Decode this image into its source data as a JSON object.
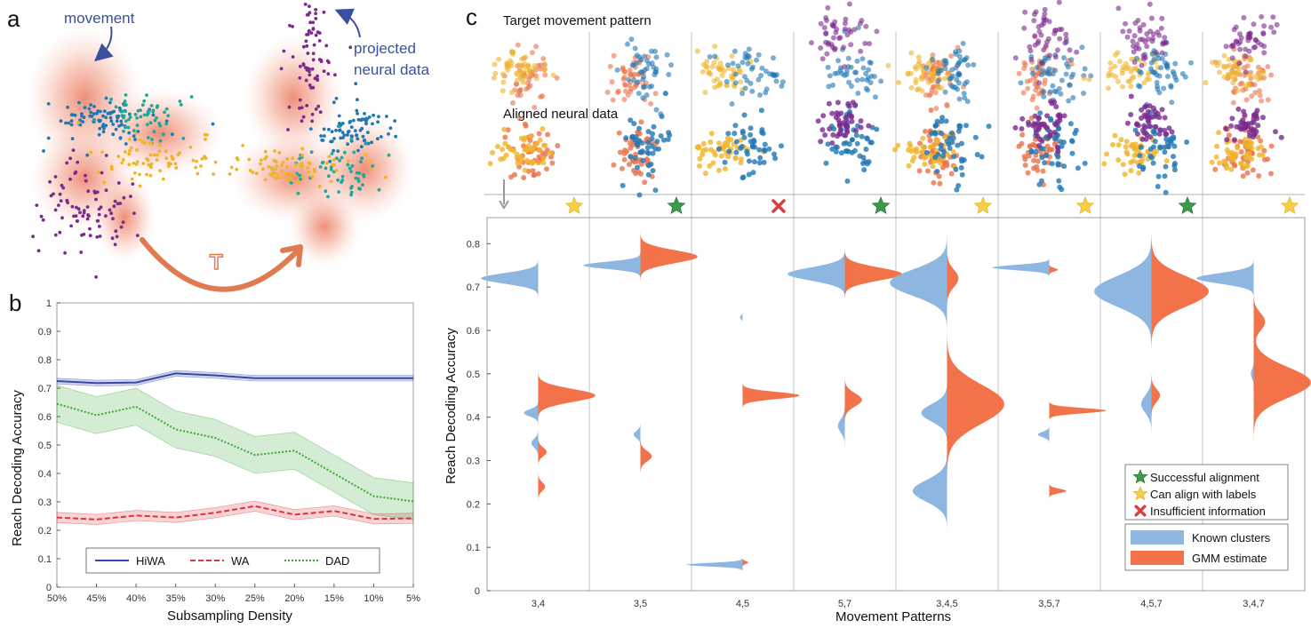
{
  "panels": {
    "a": {
      "letter": "a",
      "label_movement": "movement",
      "label_projected_1": "projected",
      "label_projected_2": "neural data",
      "transform_symbol": "T",
      "colors": {
        "blue": "#1f77b4",
        "teal": "#1fa89a",
        "yellow": "#f0b429",
        "purple": "#7b2a8e",
        "orange": "#e8734a"
      }
    },
    "b": {
      "letter": "b",
      "chart_data": {
        "type": "line",
        "x": [
          "50%",
          "45%",
          "40%",
          "35%",
          "30%",
          "25%",
          "20%",
          "15%",
          "10%",
          "5%"
        ],
        "xlabel": "Subsampling Density",
        "ylabel": "Reach Decoding Accuracy",
        "ylim": [
          0,
          1
        ],
        "yticks": [
          "0",
          "0.1",
          "0.2",
          "0.3",
          "0.4",
          "0.5",
          "0.6",
          "0.7",
          "0.8",
          "0.9",
          "1"
        ],
        "series": [
          {
            "name": "HiWA",
            "color": "#3848a8",
            "style": "solid",
            "values": [
              0.725,
              0.718,
              0.72,
              0.752,
              0.745,
              0.735,
              0.735,
              0.735,
              0.735,
              0.735
            ],
            "band": 0.01
          },
          {
            "name": "WA",
            "color": "#d9363e",
            "style": "dashed",
            "values": [
              0.245,
              0.238,
              0.252,
              0.245,
              0.262,
              0.285,
              0.255,
              0.268,
              0.24,
              0.242
            ],
            "band": 0.018
          },
          {
            "name": "DAD",
            "color": "#3aa83a",
            "style": "dotted",
            "values": [
              0.645,
              0.605,
              0.635,
              0.555,
              0.525,
              0.465,
              0.48,
              0.4,
              0.32,
              0.302
            ],
            "band": 0.065
          }
        ],
        "legend": "bottom"
      }
    },
    "c": {
      "letter": "c",
      "row_label_top": "Target movement pattern",
      "row_label_bottom": "Aligned neural data",
      "chart_data": {
        "type": "violin",
        "categories": [
          "3,4",
          "3,5",
          "4,5",
          "5,7",
          "3,4,5",
          "3,5,7",
          "4,5,7",
          "3,4,7"
        ],
        "status": [
          "can-align",
          "success",
          "insufficient",
          "success",
          "can-align",
          "can-align",
          "success",
          "can-align"
        ],
        "xlabel": "Movement Patterns",
        "ylabel": "Reach Decoding Accuracy",
        "ylim": [
          0,
          0.86
        ],
        "yticks": [
          "0",
          "0.1",
          "0.2",
          "0.3",
          "0.4",
          "0.5",
          "0.6",
          "0.7",
          "0.8"
        ],
        "series": [
          {
            "name": "Known clusters",
            "color": "#8db7e0",
            "modes": [
              [
                [
                  0.72,
                  0.012,
                  1.0
                ],
                [
                  0.41,
                  0.008,
                  0.25
                ],
                [
                  0.34,
                  0.01,
                  0.12
                ]
              ],
              [
                [
                  0.75,
                  0.008,
                  1.0
                ],
                [
                  0.36,
                  0.008,
                  0.12
                ]
              ],
              [
                [
                  0.06,
                  0.004,
                  1.0
                ],
                [
                  0.63,
                  0.004,
                  0.05
                ]
              ],
              [
                [
                  0.73,
                  0.015,
                  1.0
                ],
                [
                  0.38,
                  0.015,
                  0.12
                ]
              ],
              [
                [
                  0.71,
                  0.03,
                  1.0
                ],
                [
                  0.41,
                  0.02,
                  0.45
                ],
                [
                  0.23,
                  0.025,
                  0.6
                ]
              ],
              [
                [
                  0.745,
                  0.006,
                  1.0
                ],
                [
                  0.36,
                  0.006,
                  0.2
                ]
              ],
              [
                [
                  0.69,
                  0.035,
                  1.0
                ],
                [
                  0.43,
                  0.02,
                  0.18
                ]
              ],
              [
                [
                  0.72,
                  0.012,
                  1.0
                ],
                [
                  0.5,
                  0.01,
                  0.05
                ]
              ]
            ]
          },
          {
            "name": "GMM estimate",
            "color": "#f2734a",
            "modes": [
              [
                [
                  0.45,
                  0.015,
                  1.0
                ],
                [
                  0.32,
                  0.01,
                  0.15
                ],
                [
                  0.24,
                  0.01,
                  0.12
                ]
              ],
              [
                [
                  0.77,
                  0.015,
                  1.0
                ],
                [
                  0.31,
                  0.012,
                  0.2
                ]
              ],
              [
                [
                  0.45,
                  0.008,
                  1.0
                ],
                [
                  0.065,
                  0.003,
                  0.1
                ]
              ],
              [
                [
                  0.73,
                  0.015,
                  1.0
                ],
                [
                  0.44,
                  0.015,
                  0.3
                ]
              ],
              [
                [
                  0.43,
                  0.045,
                  1.0
                ],
                [
                  0.72,
                  0.02,
                  0.2
                ]
              ],
              [
                [
                  0.415,
                  0.006,
                  1.0
                ],
                [
                  0.23,
                  0.005,
                  0.3
                ],
                [
                  0.74,
                  0.004,
                  0.15
                ]
              ],
              [
                [
                  0.69,
                  0.035,
                  1.0
                ],
                [
                  0.45,
                  0.015,
                  0.15
                ]
              ],
              [
                [
                  0.48,
                  0.035,
                  1.0
                ],
                [
                  0.62,
                  0.02,
                  0.2
                ]
              ]
            ]
          }
        ],
        "legend_status": [
          {
            "label": "Successful alignment",
            "symbol": "green-star",
            "color": "#3c9b4a"
          },
          {
            "label": "Can align with labels",
            "symbol": "yellow-star",
            "color": "#f5cf4a"
          },
          {
            "label": "Insufficient information",
            "symbol": "red-x",
            "color": "#d64040"
          }
        ],
        "legend_series": [
          "Known clusters",
          "GMM estimate"
        ]
      }
    }
  }
}
